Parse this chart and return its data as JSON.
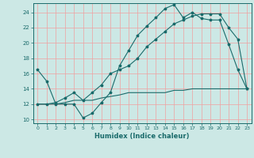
{
  "xlabel": "Humidex (Indice chaleur)",
  "background_color": "#cce8e5",
  "grid_color": "#f0a0a0",
  "line_color": "#1a6b6b",
  "xlim": [
    -0.5,
    23.5
  ],
  "ylim": [
    9.5,
    25.2
  ],
  "xticks": [
    0,
    1,
    2,
    3,
    4,
    5,
    6,
    7,
    8,
    9,
    10,
    11,
    12,
    13,
    14,
    15,
    16,
    17,
    18,
    19,
    20,
    21,
    22,
    23
  ],
  "yticks": [
    10,
    12,
    14,
    16,
    18,
    20,
    22,
    24
  ],
  "line1_x": [
    0,
    1,
    2,
    3,
    4,
    5,
    6,
    7,
    8,
    9,
    10,
    11,
    12,
    13,
    14,
    15,
    16,
    17,
    18,
    19,
    20,
    21,
    22,
    23
  ],
  "line1_y": [
    16.5,
    15.0,
    12.0,
    12.0,
    12.0,
    10.2,
    10.8,
    12.2,
    13.5,
    17.0,
    19.0,
    21.0,
    22.2,
    23.3,
    24.5,
    25.0,
    23.3,
    24.0,
    23.2,
    23.0,
    23.0,
    19.8,
    16.5,
    14.0
  ],
  "line2_x": [
    0,
    1,
    2,
    3,
    4,
    5,
    6,
    7,
    8,
    9,
    10,
    11,
    12,
    13,
    14,
    15,
    16,
    17,
    18,
    19,
    20,
    21,
    22,
    23
  ],
  "line2_y": [
    12.0,
    12.0,
    12.0,
    12.2,
    12.5,
    12.5,
    12.5,
    12.8,
    13.0,
    13.2,
    13.5,
    13.5,
    13.5,
    13.5,
    13.5,
    13.8,
    13.8,
    14.0,
    14.0,
    14.0,
    14.0,
    14.0,
    14.0,
    14.0
  ],
  "line3_x": [
    0,
    1,
    2,
    3,
    4,
    5,
    6,
    7,
    8,
    9,
    10,
    11,
    12,
    13,
    14,
    15,
    16,
    17,
    18,
    19,
    20,
    21,
    22,
    23
  ],
  "line3_y": [
    12.0,
    12.0,
    12.2,
    12.8,
    13.5,
    12.5,
    13.5,
    14.5,
    16.0,
    16.5,
    17.0,
    18.0,
    19.5,
    20.5,
    21.5,
    22.5,
    23.0,
    23.5,
    23.8,
    23.8,
    23.8,
    22.0,
    20.5,
    14.0
  ]
}
